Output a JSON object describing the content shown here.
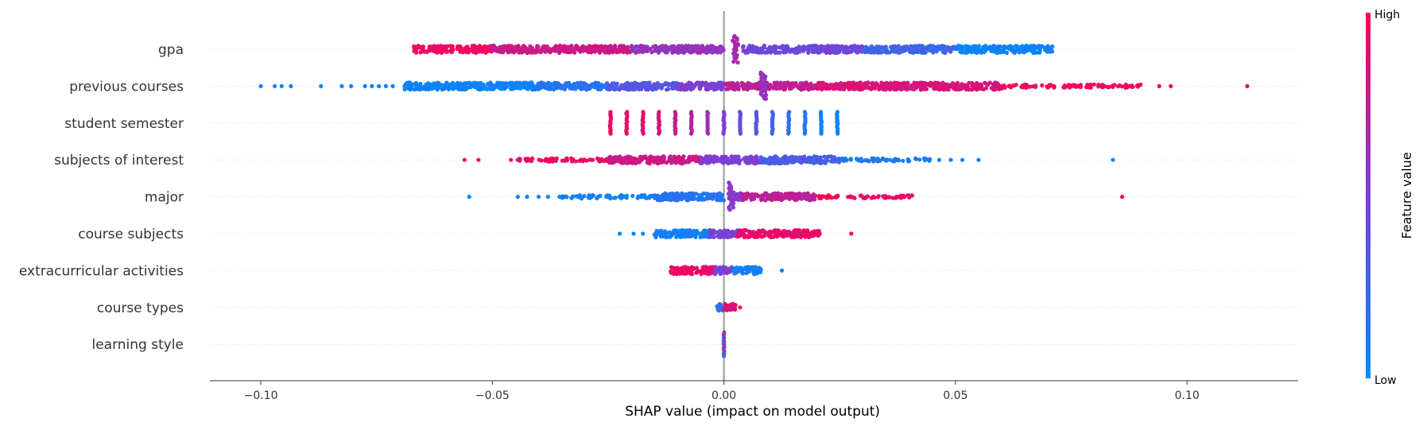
{
  "chart_data": {
    "type": "scatter",
    "subtype": "shap-beeswarm",
    "title": "",
    "xlabel": "SHAP value (impact on model output)",
    "ylabel": "",
    "xlim": [
      -0.111,
      0.124
    ],
    "xticks": [
      -0.1,
      -0.05,
      0.0,
      0.05,
      0.1
    ],
    "xtick_labels": [
      "−0.10",
      "−0.05",
      "0.00",
      "0.05",
      "0.10"
    ],
    "zero_line": true,
    "grid": "dotted horizontal row guides",
    "colorbar": {
      "title": "Feature value",
      "high_label": "High",
      "low_label": "Low",
      "low_color": "#008bfb",
      "mid_color": "#7c3fd6",
      "high_color": "#ff0052",
      "placement": "right"
    },
    "features": [
      {
        "name": "gpa",
        "segments": [
          [
            -0.067,
            -0.05,
            0.95,
            "dense"
          ],
          [
            -0.05,
            -0.02,
            0.8,
            "dense"
          ],
          [
            -0.02,
            0.0,
            0.6,
            "dense"
          ],
          [
            0.004,
            0.03,
            0.45,
            "dense"
          ],
          [
            0.03,
            0.05,
            0.25,
            "dense"
          ],
          [
            0.05,
            0.071,
            0.05,
            "dense"
          ]
        ],
        "clusters": [
          [
            0.0025,
            0.65,
            "dense-column"
          ]
        ],
        "outliers": []
      },
      {
        "name": "previous courses",
        "segments": [
          [
            -0.069,
            -0.04,
            0.05,
            "dense"
          ],
          [
            -0.04,
            -0.025,
            0.15,
            "dense"
          ],
          [
            -0.025,
            -0.01,
            0.35,
            "dense"
          ],
          [
            -0.01,
            0.0,
            0.5,
            "dense"
          ],
          [
            0.0,
            0.02,
            0.75,
            "dense"
          ],
          [
            0.02,
            0.06,
            0.85,
            "dense"
          ],
          [
            0.06,
            0.09,
            0.95,
            "sparse"
          ]
        ],
        "clusters": [
          [
            0.0085,
            0.6,
            "dense-column"
          ]
        ],
        "outliers": [
          [
            -0.1,
            0.02
          ],
          [
            -0.097,
            0.02
          ],
          [
            -0.0955,
            0.03
          ],
          [
            -0.0935,
            0.03
          ],
          [
            -0.087,
            0.03
          ],
          [
            -0.0825,
            0.03
          ],
          [
            -0.0805,
            0.04
          ],
          [
            -0.0775,
            0.04
          ],
          [
            -0.076,
            0.04
          ],
          [
            -0.0745,
            0.04
          ],
          [
            -0.073,
            0.04
          ],
          [
            -0.0715,
            0.05
          ],
          [
            0.094,
            0.95
          ],
          [
            0.0965,
            0.95
          ],
          [
            0.113,
            0.98
          ]
        ]
      },
      {
        "name": "student semester",
        "segments": [],
        "clusters": [
          [
            -0.0245,
            0.95,
            "stripe"
          ],
          [
            -0.021,
            0.92,
            "stripe"
          ],
          [
            -0.0175,
            0.9,
            "stripe"
          ],
          [
            -0.014,
            0.85,
            "stripe"
          ],
          [
            -0.0105,
            0.78,
            "stripe"
          ],
          [
            -0.007,
            0.72,
            "stripe"
          ],
          [
            -0.0035,
            0.62,
            "stripe"
          ],
          [
            0.0,
            0.5,
            "stripe"
          ],
          [
            0.0035,
            0.42,
            "stripe"
          ],
          [
            0.007,
            0.35,
            "stripe"
          ],
          [
            0.0105,
            0.25,
            "stripe"
          ],
          [
            0.014,
            0.18,
            "stripe"
          ],
          [
            0.0175,
            0.12,
            "stripe"
          ],
          [
            0.021,
            0.06,
            "stripe"
          ],
          [
            0.0245,
            0.03,
            "stripe"
          ]
        ],
        "outliers": []
      },
      {
        "name": "subjects of interest",
        "segments": [
          [
            -0.045,
            -0.025,
            0.95,
            "sparse"
          ],
          [
            -0.025,
            -0.005,
            0.8,
            "dense"
          ],
          [
            -0.005,
            0.008,
            0.5,
            "dense"
          ],
          [
            0.008,
            0.025,
            0.3,
            "dense"
          ],
          [
            0.025,
            0.045,
            0.1,
            "sparse"
          ]
        ],
        "clusters": [],
        "outliers": [
          [
            -0.056,
            0.95
          ],
          [
            -0.053,
            0.95
          ],
          [
            -0.046,
            0.95
          ],
          [
            -0.0445,
            0.92
          ],
          [
            -0.0425,
            0.92
          ],
          [
            0.0465,
            0.05
          ],
          [
            0.049,
            0.05
          ],
          [
            0.0515,
            0.05
          ],
          [
            0.055,
            0.05
          ],
          [
            0.084,
            0.05
          ]
        ]
      },
      {
        "name": "major",
        "segments": [
          [
            -0.035,
            -0.015,
            0.05,
            "sparse"
          ],
          [
            -0.015,
            0.0,
            0.15,
            "dense"
          ],
          [
            0.001,
            0.004,
            0.55,
            "dense"
          ],
          [
            0.004,
            0.02,
            0.75,
            "dense"
          ],
          [
            0.02,
            0.041,
            0.95,
            "sparse"
          ]
        ],
        "clusters": [
          [
            0.0015,
            0.55,
            "dense-column"
          ]
        ],
        "outliers": [
          [
            -0.055,
            0.02
          ],
          [
            -0.0445,
            0.03
          ],
          [
            -0.0425,
            0.03
          ],
          [
            -0.04,
            0.03
          ],
          [
            -0.038,
            0.04
          ],
          [
            -0.0355,
            0.04
          ],
          [
            0.086,
            0.98
          ]
        ]
      },
      {
        "name": "course subjects",
        "segments": [
          [
            -0.015,
            -0.003,
            0.08,
            "dense"
          ],
          [
            -0.003,
            0.003,
            0.5,
            "dense"
          ],
          [
            0.003,
            0.021,
            0.92,
            "dense"
          ]
        ],
        "clusters": [],
        "outliers": [
          [
            -0.0225,
            0.02
          ],
          [
            -0.0195,
            0.04
          ],
          [
            -0.0175,
            0.04
          ],
          [
            0.0275,
            0.98
          ]
        ]
      },
      {
        "name": "extracurricular activities",
        "segments": [
          [
            -0.0115,
            -0.002,
            0.93,
            "dense"
          ],
          [
            -0.002,
            0.002,
            0.5,
            "dense"
          ],
          [
            0.002,
            0.008,
            0.08,
            "dense"
          ]
        ],
        "clusters": [],
        "outliers": [
          [
            0.0125,
            0.05
          ]
        ]
      },
      {
        "name": "course types",
        "segments": [
          [
            -0.0015,
            0.0,
            0.2,
            "dense"
          ],
          [
            0.0,
            0.0025,
            0.85,
            "dense"
          ]
        ],
        "clusters": [],
        "outliers": [
          [
            0.0035,
            0.95
          ]
        ]
      },
      {
        "name": "learning style",
        "segments": [],
        "clusters": [
          [
            0.0,
            0.5,
            "column-mixed"
          ]
        ],
        "outliers": []
      }
    ]
  }
}
